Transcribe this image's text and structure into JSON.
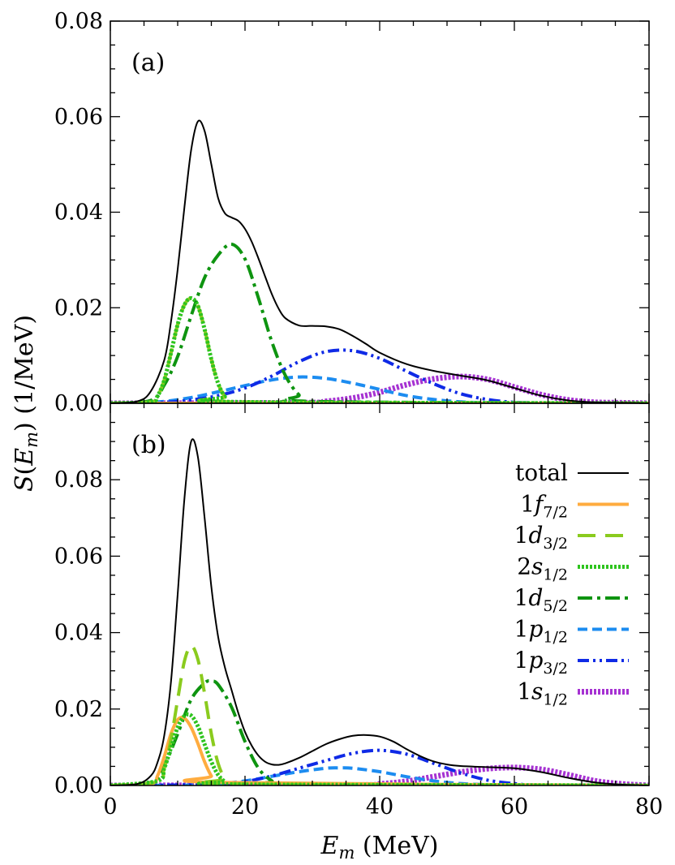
{
  "chart_data": {
    "type": "line",
    "xlabel": "E_m (MeV)",
    "ylabel": "S(E_m) (1/MeV)",
    "xlim": [
      0,
      80
    ],
    "x_ticks": [
      "0",
      "20",
      "40",
      "60",
      "80"
    ],
    "legend_position": "right (panel b)",
    "panels": [
      {
        "label": "(a)",
        "ylim": [
          0,
          0.08
        ],
        "y_ticks": [
          "0.00",
          "0.02",
          "0.04",
          "0.06",
          "0.08"
        ],
        "series": [
          {
            "key": "total",
            "x": [
              0,
              4,
              6,
              8,
              9,
              10,
              11,
              12,
              13,
              14,
              15,
              16,
              17,
              18,
              19,
              20,
              21,
              22,
              23,
              24,
              25,
              26,
              28,
              30,
              32,
              34,
              36,
              38,
              40,
              44,
              48,
              52,
              56,
              60,
              64,
              68,
              72,
              76,
              80
            ],
            "y": [
              0,
              0.0004,
              0.0025,
              0.009,
              0.017,
              0.028,
              0.041,
              0.053,
              0.059,
              0.057,
              0.05,
              0.043,
              0.0398,
              0.0389,
              0.0382,
              0.0365,
              0.0338,
              0.0303,
              0.0265,
              0.0228,
              0.0198,
              0.0178,
              0.0163,
              0.0162,
              0.0161,
              0.0155,
              0.0141,
              0.0124,
              0.0106,
              0.0082,
              0.0068,
              0.0058,
              0.0048,
              0.0032,
              0.0016,
              0.0006,
              0.0002,
              0.0001,
              0
            ]
          },
          {
            "key": "1f72",
            "x": [
              0,
              80
            ],
            "y": [
              0,
              0
            ]
          },
          {
            "key": "1d32",
            "x": [
              0,
              6,
              7,
              8,
              9,
              10,
              11,
              12,
              13,
              14,
              15,
              16,
              17,
              18,
              80
            ],
            "y": [
              0,
              0.0003,
              0.0015,
              0.0048,
              0.0105,
              0.0165,
              0.0206,
              0.022,
              0.0204,
              0.0155,
              0.0092,
              0.0042,
              0.0014,
              0.0003,
              0
            ]
          },
          {
            "key": "2s12",
            "x": [
              0,
              6,
              7,
              8,
              9,
              10,
              11,
              12,
              13,
              14,
              15,
              16,
              17,
              18,
              80
            ],
            "y": [
              0,
              0.0003,
              0.0015,
              0.0048,
              0.0105,
              0.0165,
              0.0206,
              0.022,
              0.0204,
              0.0155,
              0.0092,
              0.0042,
              0.0014,
              0.0003,
              0
            ]
          },
          {
            "key": "1d52",
            "x": [
              0,
              6,
              8,
              10,
              12,
              14,
              16,
              18,
              20,
              22,
              24,
              26,
              28,
              30,
              80
            ],
            "y": [
              0,
              0.0006,
              0.0038,
              0.0098,
              0.0183,
              0.0263,
              0.031,
              0.0333,
              0.0302,
              0.022,
              0.0128,
              0.0058,
              0.0018,
              0.0004,
              0
            ]
          },
          {
            "key": "1p12",
            "x": [
              0,
              4,
              8,
              12,
              16,
              20,
              24,
              28,
              32,
              36,
              40,
              44,
              48,
              52,
              56,
              60,
              80
            ],
            "y": [
              0,
              0.0001,
              0.0004,
              0.0012,
              0.0024,
              0.0037,
              0.0049,
              0.0055,
              0.0052,
              0.0042,
              0.0029,
              0.0016,
              0.0008,
              0.0003,
              0.0001,
              0,
              0
            ]
          },
          {
            "key": "1p32",
            "x": [
              0,
              8,
              12,
              16,
              20,
              24,
              28,
              32,
              36,
              40,
              44,
              48,
              52,
              56,
              60,
              64,
              68,
              80
            ],
            "y": [
              0,
              0.0002,
              0.0007,
              0.0016,
              0.0032,
              0.0057,
              0.0087,
              0.0108,
              0.011,
              0.0094,
              0.0067,
              0.0041,
              0.002,
              0.0008,
              0.0002,
              0.0001,
              0,
              0
            ]
          },
          {
            "key": "1s12",
            "x": [
              0,
              28,
              32,
              36,
              40,
              44,
              48,
              52,
              56,
              60,
              64,
              68,
              72,
              76,
              80
            ],
            "y": [
              0,
              0.0001,
              0.0004,
              0.0011,
              0.0023,
              0.0039,
              0.0051,
              0.0056,
              0.005,
              0.0034,
              0.0018,
              0.0007,
              0.0002,
              0.0001,
              0
            ]
          }
        ]
      },
      {
        "label": "(b)",
        "ylim": [
          0,
          0.1
        ],
        "y_ticks": [
          "0.00",
          "0.02",
          "0.04",
          "0.06",
          "0.08"
        ],
        "series": [
          {
            "key": "total",
            "x": [
              0,
              4,
              6,
              7,
              8,
              9,
              10,
              11,
              12,
              13,
              14,
              15,
              16,
              17,
              18,
              19,
              20,
              21,
              22,
              23,
              24,
              25,
              26,
              28,
              30,
              32,
              34,
              36,
              38,
              40,
              42,
              44,
              46,
              48,
              50,
              52,
              56,
              60,
              64,
              68,
              72,
              76,
              80
            ],
            "y": [
              0,
              0.0004,
              0.0025,
              0.006,
              0.013,
              0.027,
              0.05,
              0.075,
              0.09,
              0.086,
              0.07,
              0.052,
              0.039,
              0.031,
              0.025,
              0.019,
              0.014,
              0.0104,
              0.0078,
              0.0062,
              0.0055,
              0.0054,
              0.0058,
              0.0072,
              0.009,
              0.0108,
              0.0121,
              0.013,
              0.0132,
              0.0128,
              0.0115,
              0.0095,
              0.0077,
              0.0063,
              0.0055,
              0.0051,
              0.0048,
              0.0045,
              0.0035,
              0.002,
              0.0008,
              0.0002,
              0
            ]
          },
          {
            "key": "1f72",
            "x": [
              0,
              6,
              7,
              8,
              9,
              10,
              11,
              12,
              13,
              14,
              15,
              16,
              80
            ],
            "y": [
              0,
              0.0004,
              0.0025,
              0.0075,
              0.0135,
              0.0172,
              0.0176,
              0.0152,
              0.011,
              0.0062,
              0.0025,
              0.0008,
              0
            ]
          },
          {
            "key": "1d32",
            "x": [
              0,
              7,
              8,
              9,
              10,
              11,
              12,
              13,
              14,
              15,
              16,
              17,
              18,
              80
            ],
            "y": [
              0,
              0.001,
              0.0045,
              0.012,
              0.0225,
              0.0325,
              0.0365,
              0.033,
              0.024,
              0.0135,
              0.0058,
              0.0018,
              0.0004,
              0
            ]
          },
          {
            "key": "2s12",
            "x": [
              0,
              7,
              8,
              9,
              10,
              11,
              12,
              13,
              14,
              15,
              16,
              17,
              18,
              80
            ],
            "y": [
              0,
              0.0012,
              0.0045,
              0.0098,
              0.0152,
              0.0182,
              0.0183,
              0.0155,
              0.0108,
              0.0062,
              0.0028,
              0.001,
              0.0003,
              0
            ]
          },
          {
            "key": "1d52",
            "x": [
              0,
              6,
              8,
              10,
              12,
              14,
              15,
              16,
              18,
              20,
              22,
              24,
              26,
              80
            ],
            "y": [
              0,
              0.0008,
              0.0052,
              0.0135,
              0.0225,
              0.0268,
              0.0273,
              0.0264,
              0.0205,
              0.0115,
              0.0045,
              0.0012,
              0.0002,
              0
            ]
          },
          {
            "key": "1p12",
            "x": [
              0,
              12,
              16,
              20,
              24,
              28,
              32,
              34,
              36,
              40,
              44,
              48,
              52,
              56,
              60,
              80
            ],
            "y": [
              0,
              0.0001,
              0.0004,
              0.0012,
              0.0024,
              0.0036,
              0.0045,
              0.0046,
              0.0045,
              0.0036,
              0.0023,
              0.0012,
              0.0005,
              0.0002,
              0,
              0
            ]
          },
          {
            "key": "1p32",
            "x": [
              0,
              16,
              20,
              24,
              28,
              32,
              36,
              40,
              44,
              48,
              52,
              56,
              60,
              64,
              80
            ],
            "y": [
              0,
              0.0003,
              0.001,
              0.0025,
              0.0045,
              0.0065,
              0.0084,
              0.0092,
              0.0082,
              0.0058,
              0.0033,
              0.0014,
              0.0005,
              0.0001,
              0
            ]
          },
          {
            "key": "1s12",
            "x": [
              0,
              36,
              40,
              44,
              48,
              52,
              56,
              60,
              64,
              68,
              72,
              76,
              80
            ],
            "y": [
              0,
              0.0001,
              0.0004,
              0.0011,
              0.0023,
              0.0035,
              0.0044,
              0.0047,
              0.0042,
              0.0028,
              0.0012,
              0.0004,
              0
            ]
          }
        ]
      }
    ],
    "legend": [
      {
        "key": "total",
        "label_main": "total",
        "label_sub": "",
        "color": "#000000",
        "dash": "none",
        "width": 2
      },
      {
        "key": "1f72",
        "label_main": "1f",
        "label_sub": "7/2",
        "color": "#ffac3f",
        "dash": "none",
        "width": 4
      },
      {
        "key": "1d32",
        "label_main": "1d",
        "label_sub": "3/2",
        "color": "#8acb1e",
        "dash": "22,12",
        "width": 4
      },
      {
        "key": "2s12",
        "label_main": "2s",
        "label_sub": "1/2",
        "color": "#2ec41e",
        "dash": "3,2",
        "width": 5
      },
      {
        "key": "1d52",
        "label_main": "1d",
        "label_sub": "5/2",
        "color": "#0e9410",
        "dash": "18,6,4,6",
        "width": 4
      },
      {
        "key": "1p12",
        "label_main": "1p",
        "label_sub": "1/2",
        "color": "#1c8cf0",
        "dash": "12,6",
        "width": 4
      },
      {
        "key": "1p32",
        "label_main": "1p",
        "label_sub": "3/2",
        "color": "#0f2ae6",
        "dash": "14,5,3,5,3,5",
        "width": 4
      },
      {
        "key": "1s12",
        "label_main": "1s",
        "label_sub": "1/2",
        "color": "#a632d2",
        "dash": "3,2",
        "width": 7
      }
    ]
  }
}
